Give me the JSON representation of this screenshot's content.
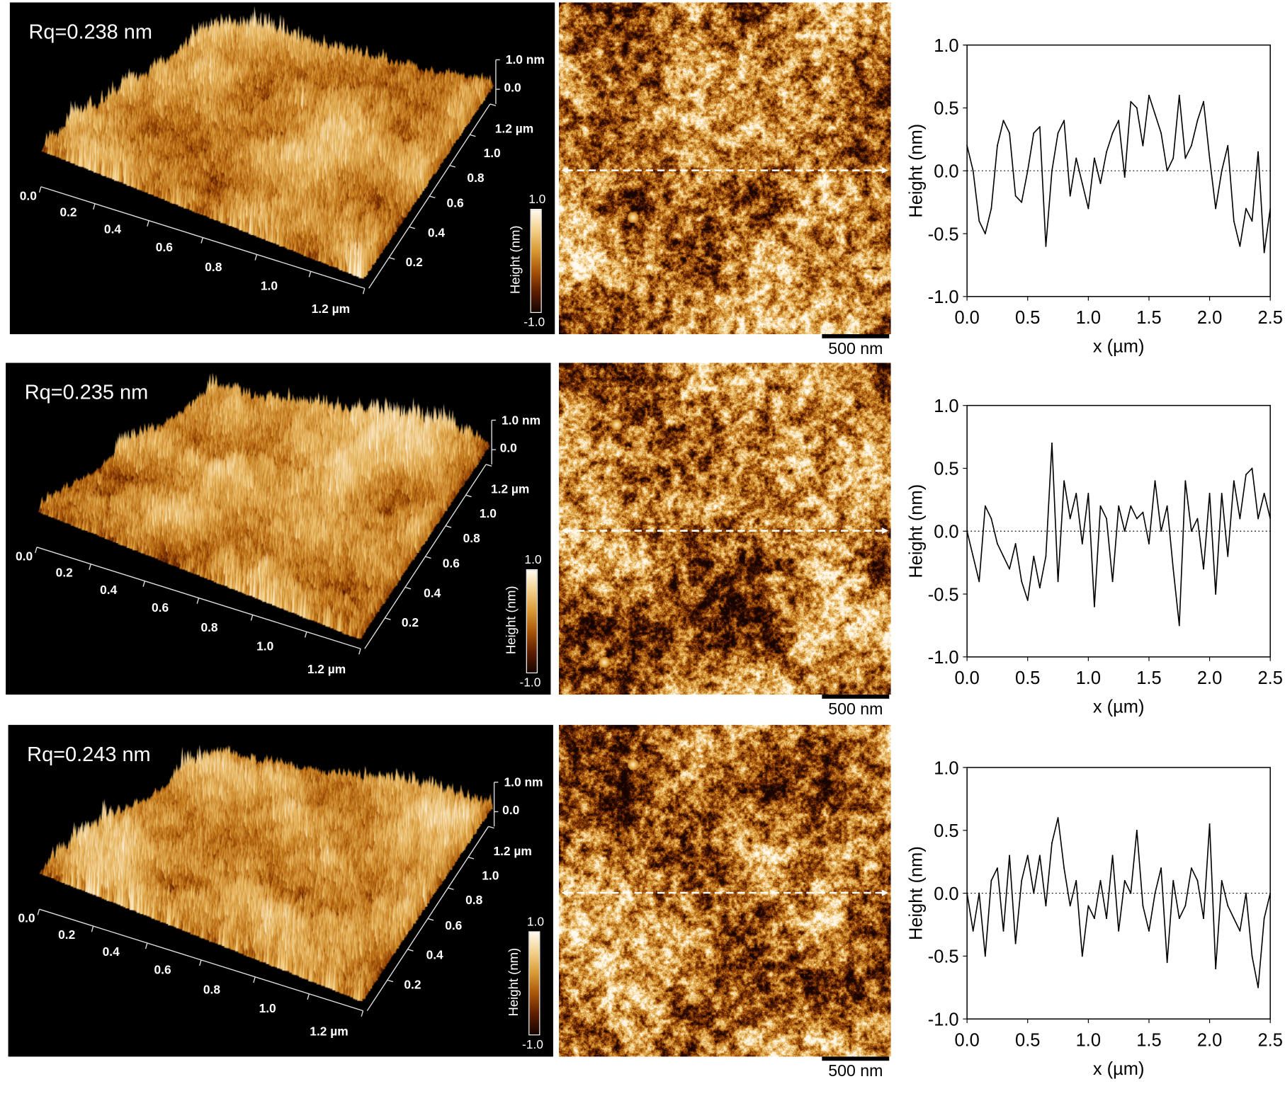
{
  "colormap": [
    "#150400",
    "#5e1d00",
    "#a85508",
    "#d99a35",
    "#f3d08a",
    "#fffaf0"
  ],
  "rows": [
    {
      "rq_label": "Rq=0.238 nm",
      "surface_3d": {
        "z_axis_labels": [
          "1.0 nm",
          "0.0"
        ],
        "y_axis_labels": [
          "1.2 µm",
          "1.0",
          "0.8",
          "0.6",
          "0.4",
          "0.2"
        ],
        "x_axis_labels": [
          "0.0",
          "0.2",
          "0.4",
          "0.6",
          "0.8",
          "1.0",
          "1.2 µm"
        ],
        "colorbar": {
          "max": "1.0",
          "min": "-1.0",
          "label": "Height (nm)"
        }
      },
      "scale_bar": "500 nm"
    },
    {
      "rq_label": "Rq=0.235 nm",
      "surface_3d": {
        "z_axis_labels": [
          "1.0 nm",
          "0.0"
        ],
        "y_axis_labels": [
          "1.2 µm",
          "1.0",
          "0.8",
          "0.6",
          "0.4",
          "0.2"
        ],
        "x_axis_labels": [
          "0.0",
          "0.2",
          "0.4",
          "0.6",
          "0.8",
          "1.0",
          "1.2 µm"
        ],
        "colorbar": {
          "max": "1.0",
          "min": "-1.0",
          "label": "Height (nm)"
        }
      },
      "scale_bar": "500 nm"
    },
    {
      "rq_label": "Rq=0.243 nm",
      "surface_3d": {
        "z_axis_labels": [
          "1.0 nm",
          "0.0"
        ],
        "y_axis_labels": [
          "1.2 µm",
          "1.0",
          "0.8",
          "0.6",
          "0.4",
          "0.2"
        ],
        "x_axis_labels": [
          "0.0",
          "0.2",
          "0.4",
          "0.6",
          "0.8",
          "1.0",
          "1.2 µm"
        ],
        "colorbar": {
          "max": "1.0",
          "min": "-1.0",
          "label": "Height (nm)"
        }
      },
      "scale_bar": "500 nm"
    }
  ],
  "chart_data": [
    {
      "type": "line",
      "xlabel": "x (µm)",
      "ylabel": "Height (nm)",
      "xlim": [
        0,
        2.5
      ],
      "ylim": [
        -1,
        1
      ],
      "xticks": [
        "0.0",
        "0.5",
        "1.0",
        "1.5",
        "2.0",
        "2.5"
      ],
      "yticks": [
        "1.0",
        "0.5",
        "0.0",
        "-0.5",
        "-1.0"
      ],
      "reference_line": {
        "y": 0,
        "style": "dotted"
      },
      "grid": false,
      "x": [
        0,
        0.05,
        0.1,
        0.15,
        0.2,
        0.25,
        0.3,
        0.35,
        0.4,
        0.45,
        0.5,
        0.55,
        0.6,
        0.65,
        0.7,
        0.75,
        0.8,
        0.85,
        0.9,
        0.95,
        1.0,
        1.05,
        1.1,
        1.15,
        1.2,
        1.25,
        1.3,
        1.35,
        1.4,
        1.45,
        1.5,
        1.55,
        1.6,
        1.65,
        1.7,
        1.75,
        1.8,
        1.85,
        1.9,
        1.95,
        2.0,
        2.05,
        2.1,
        2.15,
        2.2,
        2.25,
        2.3,
        2.35,
        2.4,
        2.45,
        2.5
      ],
      "series": [
        {
          "values": [
            0.2,
            0.0,
            -0.4,
            -0.5,
            -0.3,
            0.2,
            0.4,
            0.3,
            -0.2,
            -0.25,
            0.0,
            0.3,
            0.35,
            -0.6,
            0.0,
            0.3,
            0.4,
            -0.2,
            0.1,
            -0.1,
            -0.3,
            0.1,
            -0.1,
            0.15,
            0.3,
            0.4,
            -0.05,
            0.55,
            0.5,
            0.2,
            0.6,
            0.45,
            0.3,
            0.0,
            0.1,
            0.6,
            0.1,
            0.2,
            0.4,
            0.55,
            0.1,
            -0.3,
            0.0,
            0.2,
            -0.4,
            -0.6,
            -0.3,
            -0.4,
            0.15,
            -0.65,
            -0.3
          ]
        }
      ]
    },
    {
      "type": "line",
      "xlabel": "x (µm)",
      "ylabel": "Height (nm)",
      "xlim": [
        0,
        2.5
      ],
      "ylim": [
        -1,
        1
      ],
      "xticks": [
        "0.0",
        "0.5",
        "1.0",
        "1.5",
        "2.0",
        "2.5"
      ],
      "yticks": [
        "1.0",
        "0.5",
        "0.0",
        "-0.5",
        "-1.0"
      ],
      "reference_line": {
        "y": 0,
        "style": "dotted"
      },
      "grid": false,
      "x": [
        0,
        0.05,
        0.1,
        0.15,
        0.2,
        0.25,
        0.3,
        0.35,
        0.4,
        0.45,
        0.5,
        0.55,
        0.6,
        0.65,
        0.7,
        0.75,
        0.8,
        0.85,
        0.9,
        0.95,
        1.0,
        1.05,
        1.1,
        1.15,
        1.2,
        1.25,
        1.3,
        1.35,
        1.4,
        1.45,
        1.5,
        1.55,
        1.6,
        1.65,
        1.7,
        1.75,
        1.8,
        1.85,
        1.9,
        1.95,
        2.0,
        2.05,
        2.1,
        2.15,
        2.2,
        2.25,
        2.3,
        2.35,
        2.4,
        2.45,
        2.5
      ],
      "series": [
        {
          "values": [
            0.0,
            -0.2,
            -0.4,
            0.2,
            0.1,
            -0.1,
            -0.2,
            -0.3,
            -0.1,
            -0.4,
            -0.55,
            -0.2,
            -0.45,
            -0.2,
            0.7,
            -0.4,
            0.4,
            0.1,
            0.3,
            -0.1,
            0.3,
            -0.6,
            0.2,
            0.1,
            -0.4,
            0.2,
            0.0,
            0.2,
            0.1,
            0.15,
            -0.1,
            0.4,
            0.0,
            0.2,
            -0.3,
            -0.75,
            0.4,
            0.0,
            0.1,
            -0.3,
            0.3,
            -0.5,
            0.3,
            -0.2,
            0.4,
            0.1,
            0.45,
            0.5,
            0.1,
            0.3,
            0.1
          ]
        }
      ]
    },
    {
      "type": "line",
      "xlabel": "x (µm)",
      "ylabel": "Height (nm)",
      "xlim": [
        0,
        2.5
      ],
      "ylim": [
        -1,
        1
      ],
      "xticks": [
        "0.0",
        "0.5",
        "1.0",
        "1.5",
        "2.0",
        "2.5"
      ],
      "yticks": [
        "1.0",
        "0.5",
        "0.0",
        "-0.5",
        "-1.0"
      ],
      "reference_line": {
        "y": 0,
        "style": "dotted"
      },
      "grid": false,
      "x": [
        0,
        0.05,
        0.1,
        0.15,
        0.2,
        0.25,
        0.3,
        0.35,
        0.4,
        0.45,
        0.5,
        0.55,
        0.6,
        0.65,
        0.7,
        0.75,
        0.8,
        0.85,
        0.9,
        0.95,
        1.0,
        1.05,
        1.1,
        1.15,
        1.2,
        1.25,
        1.3,
        1.35,
        1.4,
        1.45,
        1.5,
        1.55,
        1.6,
        1.65,
        1.7,
        1.75,
        1.8,
        1.85,
        1.9,
        1.95,
        2.0,
        2.05,
        2.1,
        2.15,
        2.2,
        2.25,
        2.3,
        2.35,
        2.4,
        2.45,
        2.5
      ],
      "series": [
        {
          "values": [
            0.0,
            -0.3,
            0.0,
            -0.5,
            0.1,
            0.2,
            -0.3,
            0.3,
            -0.4,
            0.1,
            0.3,
            0.0,
            0.3,
            -0.1,
            0.4,
            0.6,
            0.2,
            -0.1,
            0.1,
            -0.5,
            -0.1,
            -0.2,
            0.1,
            -0.2,
            0.3,
            -0.3,
            0.1,
            0.0,
            0.5,
            -0.1,
            -0.3,
            0.0,
            0.2,
            -0.55,
            0.1,
            -0.2,
            -0.1,
            0.2,
            0.1,
            -0.2,
            0.55,
            -0.6,
            0.1,
            -0.1,
            -0.2,
            -0.3,
            0.0,
            -0.5,
            -0.75,
            -0.2,
            0.0
          ]
        }
      ]
    }
  ]
}
